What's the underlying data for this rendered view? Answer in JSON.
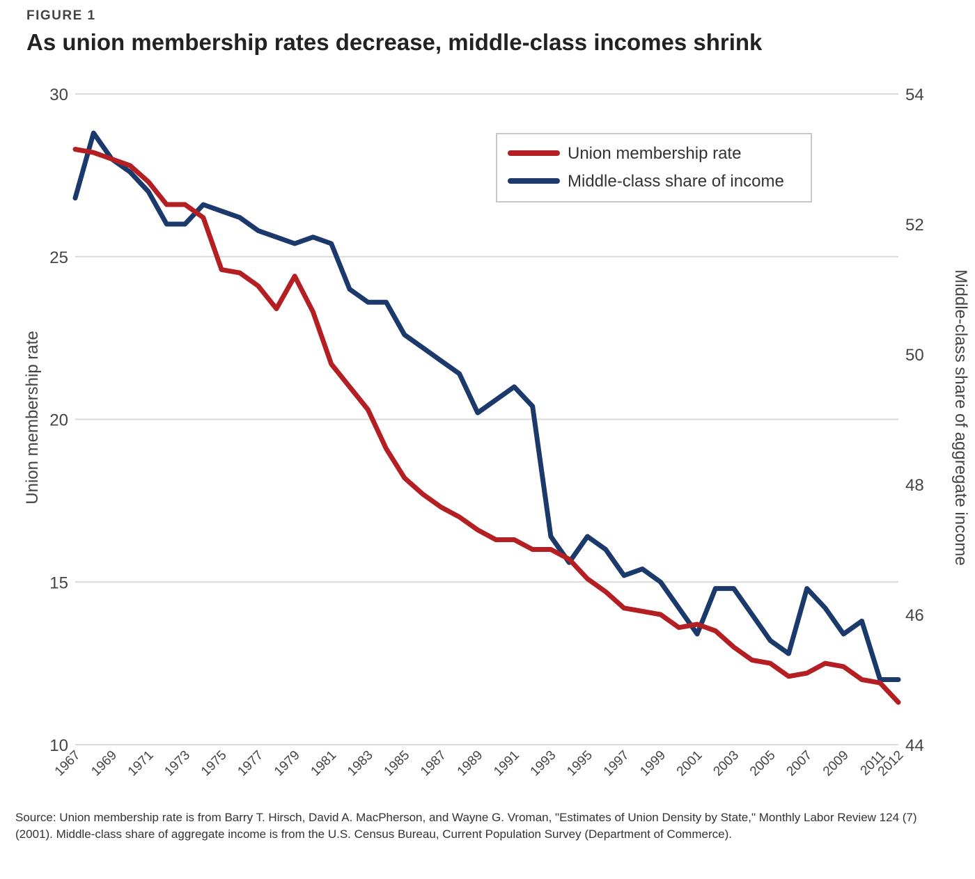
{
  "figure_label": "FIGURE 1",
  "title": "As union membership rates decrease, middle-class incomes shrink",
  "source": "Source: Union membership rate is from Barry T. Hirsch, David A. MacPherson, and Wayne G. Vroman, \"Estimates of Union Density by State,\" Monthly Labor Review 124 (7) (2001). Middle-class share of aggregate income is from the U.S. Census Bureau, Current Population Survey (Department of Commerce).",
  "colors": {
    "union": "#b41f24",
    "middle": "#1b3a6b",
    "grid": "#d9d9d9",
    "text": "#444444"
  },
  "chart_data": {
    "type": "line",
    "title": "As union membership rates decrease, middle-class incomes shrink",
    "x": [
      1967,
      1968,
      1969,
      1970,
      1971,
      1972,
      1973,
      1974,
      1975,
      1976,
      1977,
      1978,
      1979,
      1980,
      1981,
      1982,
      1983,
      1984,
      1985,
      1986,
      1987,
      1988,
      1989,
      1990,
      1991,
      1992,
      1993,
      1994,
      1995,
      1996,
      1997,
      1998,
      1999,
      2000,
      2001,
      2002,
      2003,
      2004,
      2005,
      2006,
      2007,
      2008,
      2009,
      2010,
      2011,
      2012
    ],
    "x_tick_labels": [
      "1967",
      "1969",
      "1971",
      "1973",
      "1975",
      "1977",
      "1979",
      "1981",
      "1983",
      "1985",
      "1987",
      "1989",
      "1991",
      "1993",
      "1995",
      "1997",
      "1999",
      "2001",
      "2003",
      "2005",
      "2007",
      "2009",
      "2011",
      "2012"
    ],
    "series": [
      {
        "name": "Union membership rate",
        "axis": "left",
        "values": [
          28.3,
          28.2,
          28.0,
          27.8,
          27.3,
          26.6,
          26.6,
          26.2,
          24.6,
          24.5,
          24.1,
          23.4,
          24.4,
          23.3,
          21.7,
          21.0,
          20.3,
          19.1,
          18.2,
          17.7,
          17.3,
          17.0,
          16.6,
          16.3,
          16.3,
          16.0,
          16.0,
          15.7,
          15.1,
          14.7,
          14.2,
          14.1,
          14.0,
          13.6,
          13.7,
          13.5,
          13.0,
          12.6,
          12.5,
          12.1,
          12.2,
          12.5,
          12.4,
          12.0,
          11.9,
          11.3
        ]
      },
      {
        "name": "Middle-class share of income",
        "axis": "right",
        "values": [
          52.4,
          53.4,
          53.0,
          52.8,
          52.5,
          52.0,
          52.0,
          52.3,
          52.2,
          52.1,
          51.9,
          51.8,
          51.7,
          51.8,
          51.7,
          51.0,
          50.8,
          50.8,
          50.3,
          50.1,
          49.9,
          49.7,
          49.1,
          49.3,
          49.5,
          49.2,
          47.2,
          46.8,
          47.2,
          47.0,
          46.6,
          46.7,
          46.5,
          46.1,
          45.7,
          46.4,
          46.4,
          46.0,
          45.6,
          45.4,
          46.4,
          46.1,
          45.7,
          45.9,
          45.0,
          45.0
        ]
      }
    ],
    "ylabel": "Union membership rate",
    "ylim": [
      10,
      30
    ],
    "yticks": [
      10,
      15,
      20,
      25,
      30
    ],
    "y2label": "Middle-class share of aggregate income",
    "y2lim": [
      44,
      54
    ],
    "y2ticks": [
      44,
      46,
      48,
      50,
      52,
      54
    ],
    "grid": true,
    "legend_position": "top-right"
  }
}
